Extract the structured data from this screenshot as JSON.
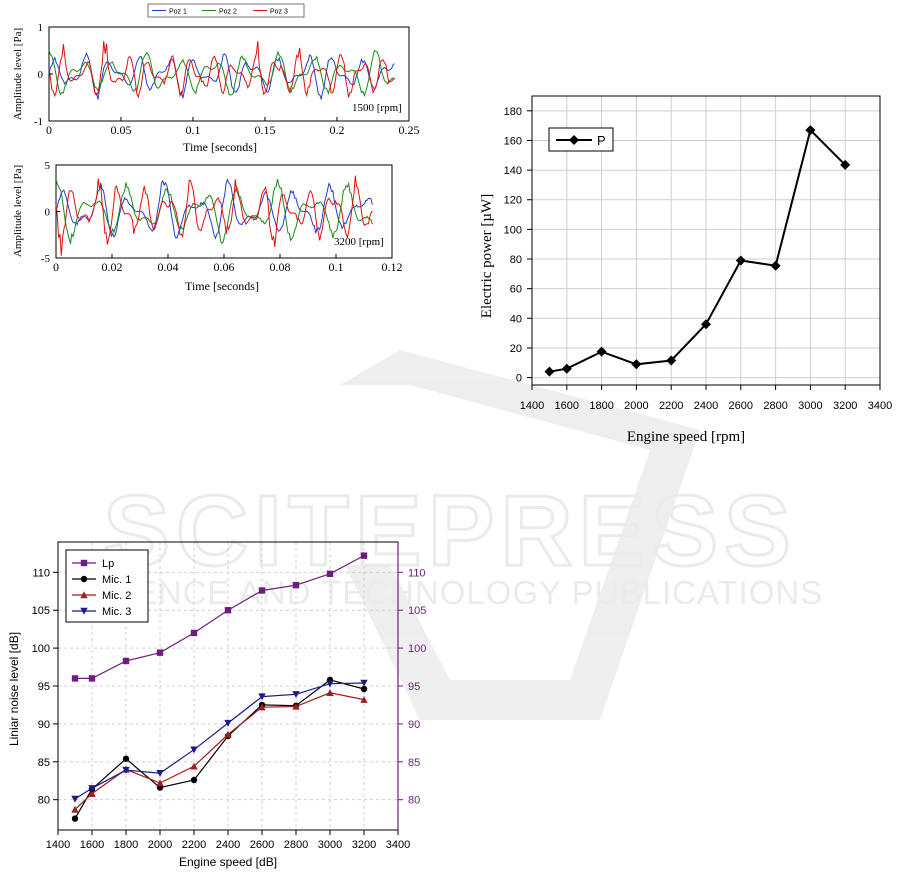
{
  "watermark": {
    "brand": "SCITEPRESS",
    "tagline": "SCIENCE AND TECHNOLOGY PUBLICATIONS"
  },
  "chart_data": [
    {
      "id": "wave-1500",
      "type": "line",
      "legend": [
        "Poz 1",
        "Poz 2",
        "Poz 3"
      ],
      "legend_position": "top",
      "annotation": "1500 [rpm]",
      "xlabel": "Time [seconds]",
      "ylabel": "Amplitude level [Pa]",
      "xlim": [
        0,
        0.25
      ],
      "ylim": [
        -1,
        1
      ],
      "xticks": [
        "0",
        "0.05",
        "0.1",
        "0.15",
        "0.2",
        "0.25"
      ],
      "yticks": [
        "-1",
        "0",
        "1"
      ],
      "grid": false,
      "colors": [
        "#1f3fcf",
        "#1a8a1a",
        "#e01010"
      ],
      "x_end": 0.24,
      "amplitude_envelope": 0.6,
      "note": "dense oscillating pressure signals"
    },
    {
      "id": "wave-3200",
      "type": "line",
      "annotation": "3200 [rpm]",
      "xlabel": "Time [seconds]",
      "ylabel": "Amplitude level [Pa]",
      "xlim": [
        0,
        0.12
      ],
      "ylim": [
        -5,
        5
      ],
      "xticks": [
        "0",
        "0.02",
        "0.04",
        "0.06",
        "0.08",
        "0.1",
        "0.12"
      ],
      "yticks": [
        "-5",
        "0",
        "5"
      ],
      "grid": false,
      "colors": [
        "#1f3fcf",
        "#1a8a1a",
        "#e01010"
      ],
      "x_end": 0.113,
      "amplitude_envelope": 4.0,
      "note": "dense oscillating pressure signals"
    },
    {
      "id": "electric-power",
      "type": "line",
      "x": [
        1500,
        1600,
        1800,
        2000,
        2200,
        2400,
        2600,
        2800,
        3000,
        3200
      ],
      "series": [
        {
          "name": "P",
          "values": [
            4,
            6,
            17.5,
            9,
            11.5,
            36,
            79,
            75.5,
            167,
            143.5
          ],
          "color": "#000000",
          "marker": "diamond"
        }
      ],
      "xlabel": "Engine speed [rpm]",
      "ylabel": "Electric power [µW]",
      "xlim": [
        1400,
        3400
      ],
      "ylim": [
        -5,
        190
      ],
      "xticks": [
        1400,
        1600,
        1800,
        2000,
        2200,
        2400,
        2600,
        2800,
        3000,
        3200,
        3400
      ],
      "yticks": [
        0,
        20,
        40,
        60,
        80,
        100,
        120,
        140,
        160,
        180
      ],
      "grid": true,
      "legend_position": "top-left"
    },
    {
      "id": "noise-level",
      "type": "line",
      "x": [
        1500,
        1600,
        1800,
        2000,
        2200,
        2400,
        2600,
        2800,
        3000,
        3200
      ],
      "series": [
        {
          "name": "Lp",
          "values": [
            96,
            96,
            98.3,
            99.4,
            102,
            105,
            107.6,
            108.3,
            109.8,
            112.2
          ],
          "color": "#6b1f7a",
          "marker": "square"
        },
        {
          "name": "Mic. 1",
          "values": [
            77.5,
            81.4,
            85.4,
            81.6,
            82.6,
            88.4,
            92.5,
            92.4,
            95.8,
            94.6
          ],
          "color": "#000000",
          "marker": "circle"
        },
        {
          "name": "Mic. 2",
          "values": [
            78.7,
            80.8,
            84,
            82.2,
            84.4,
            88.6,
            92.2,
            92.3,
            94.1,
            93.2
          ],
          "color": "#9e1f1f",
          "marker": "triangle-up"
        },
        {
          "name": "Mic. 3",
          "values": [
            80.1,
            81.5,
            83.9,
            83.5,
            86.6,
            90.1,
            93.6,
            93.9,
            95.3,
            95.4
          ],
          "color": "#1a1a8a",
          "marker": "triangle-down"
        }
      ],
      "xlabel": "Engine speed [dB]",
      "ylabel": "Liniar noise level [dB]",
      "xlim": [
        1400,
        3400
      ],
      "ylim": [
        76,
        114
      ],
      "xticks": [
        1400,
        1600,
        1800,
        2000,
        2200,
        2400,
        2600,
        2800,
        3000,
        3200,
        3400
      ],
      "yticks": [
        80,
        85,
        90,
        95,
        100,
        105,
        110
      ],
      "right_yticks": [
        80,
        85,
        90,
        95,
        100,
        105,
        110
      ],
      "right_axis_color": "#6b1f7a",
      "grid": true,
      "legend_position": "top-left"
    }
  ]
}
